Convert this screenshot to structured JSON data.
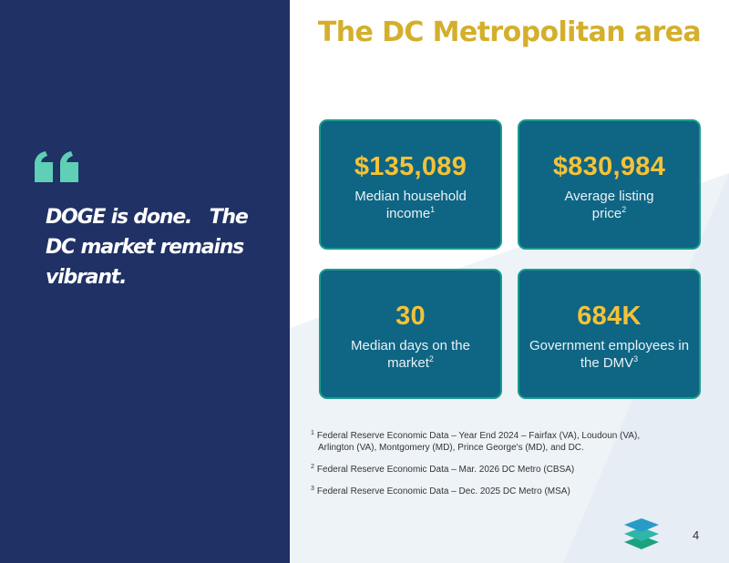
{
  "slide": {
    "title": "The DC Metropolitan area",
    "quote": {
      "icon": "quotation-mark-icon",
      "text": "DOGE is done.   The DC market remains vibrant."
    },
    "cards": [
      {
        "value": "$135,089",
        "label": "Median household income",
        "note": "1"
      },
      {
        "value": "$830,984",
        "label": "Average listing price",
        "note": "2"
      },
      {
        "value": "30",
        "label": "Median days on the market",
        "note": "2"
      },
      {
        "value": "684K",
        "label": "Government employees in the DMV",
        "note": "3"
      }
    ],
    "footnotes": [
      {
        "mark": "1",
        "line1": "Federal Reserve Economic Data – Year End 2024 – Fairfax (VA), Loudoun (VA),",
        "line2": "Arlington (VA), Montgomery (MD), Prince George's (MD), and DC."
      },
      {
        "mark": "2",
        "line1": "Federal Reserve Economic Data – Mar. 2026 DC Metro (CBSA)"
      },
      {
        "mark": "3",
        "line1": "Federal Reserve Economic Data – Dec. 2025 DC Metro (MSA)"
      }
    ],
    "logo": "layered-stack-logo-icon",
    "page_number": "4",
    "colors": {
      "navy": "#1f3165",
      "gold": "#d4af2c",
      "card": "#0f6584",
      "card_border": "#1a9b8e",
      "value": "#f5c237",
      "accent_teal": "#5fd0b5"
    }
  }
}
